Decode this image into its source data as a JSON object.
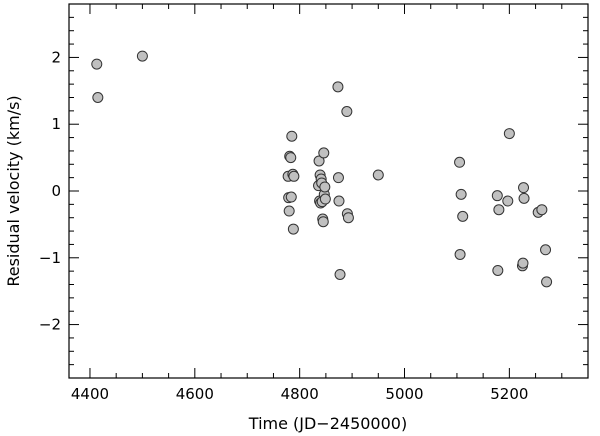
{
  "chart_data": {
    "type": "scatter",
    "title": "",
    "xlabel": "Time (JD−2450000)",
    "ylabel": "Residual velocity (km/s)",
    "xlim": [
      4360,
      5350
    ],
    "ylim": [
      -2.8,
      2.8
    ],
    "x_major_ticks": [
      4400,
      4600,
      4800,
      5000,
      5200
    ],
    "x_tick_labels": [
      "4400",
      "4600",
      "4800",
      "5000",
      "5200"
    ],
    "x_minor_step": 50,
    "y_major_ticks": [
      -2,
      -1,
      0,
      1,
      2
    ],
    "y_tick_labels": [
      "−2",
      "−1",
      "0",
      "1",
      "2"
    ],
    "y_minor_step": 0.2,
    "grid": false,
    "legend": "none",
    "marker_color": "#c0c0c0",
    "series": [
      {
        "points": [
          [
            4413,
            1.9
          ],
          [
            4415,
            1.4
          ],
          [
            4500,
            2.02
          ],
          [
            4778,
            0.22
          ],
          [
            4779,
            -0.1
          ],
          [
            4780,
            -0.3
          ],
          [
            4781,
            0.52
          ],
          [
            4783,
            0.5
          ],
          [
            4784,
            -0.09
          ],
          [
            4785,
            0.82
          ],
          [
            4787,
            0.25
          ],
          [
            4788,
            -0.57
          ],
          [
            4789,
            0.22
          ],
          [
            4836,
            0.08
          ],
          [
            4837,
            0.45
          ],
          [
            4838,
            -0.15
          ],
          [
            4839,
            0.24
          ],
          [
            4840,
            -0.18
          ],
          [
            4841,
            0.18
          ],
          [
            4842,
            0.12
          ],
          [
            4843,
            -0.16
          ],
          [
            4844,
            -0.42
          ],
          [
            4845,
            -0.46
          ],
          [
            4846,
            0.57
          ],
          [
            4847,
            -0.05
          ],
          [
            4848,
            0.06
          ],
          [
            4849,
            -0.12
          ],
          [
            4873,
            1.56
          ],
          [
            4874,
            0.2
          ],
          [
            4875,
            -0.15
          ],
          [
            4877,
            -1.25
          ],
          [
            4890,
            1.19
          ],
          [
            4891,
            -0.34
          ],
          [
            4893,
            -0.4
          ],
          [
            4950,
            0.24
          ],
          [
            5105,
            0.43
          ],
          [
            5106,
            -0.95
          ],
          [
            5108,
            -0.05
          ],
          [
            5111,
            -0.38
          ],
          [
            5177,
            -0.07
          ],
          [
            5178,
            -1.19
          ],
          [
            5180,
            -0.28
          ],
          [
            5197,
            -0.15
          ],
          [
            5200,
            0.86
          ],
          [
            5225,
            -1.12
          ],
          [
            5226,
            -1.08
          ],
          [
            5227,
            0.05
          ],
          [
            5228,
            -0.11
          ],
          [
            5255,
            -0.32
          ],
          [
            5262,
            -0.28
          ],
          [
            5269,
            -0.88
          ],
          [
            5271,
            -1.36
          ]
        ]
      }
    ]
  }
}
